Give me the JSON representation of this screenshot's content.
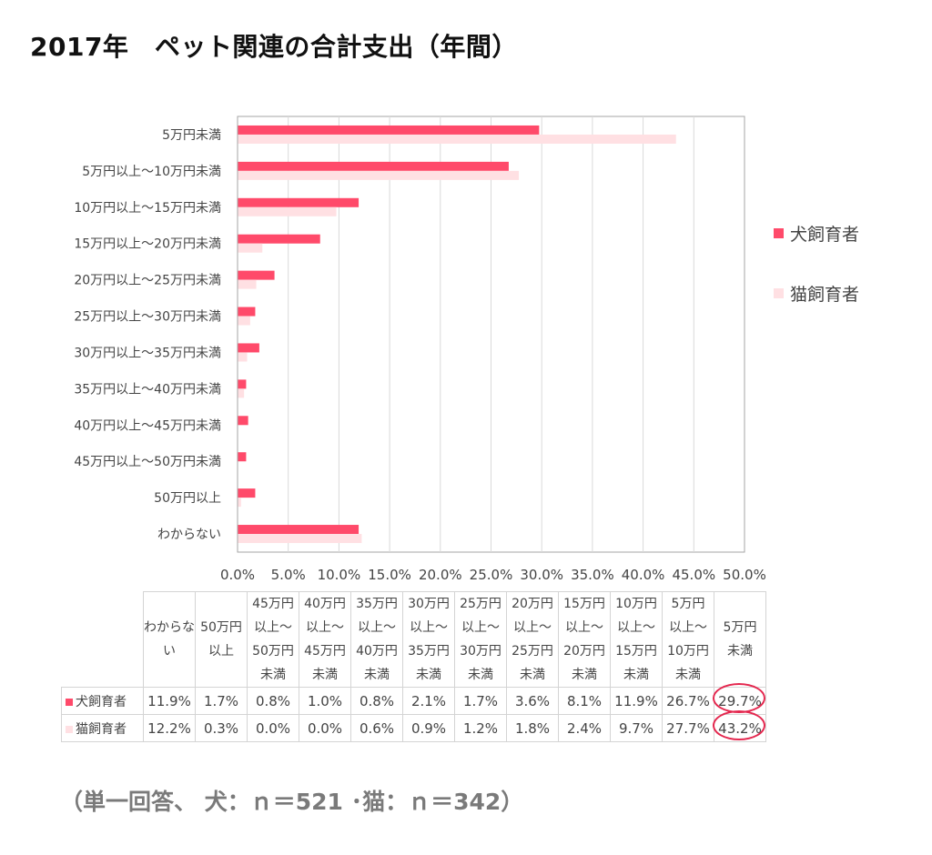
{
  "title": "2017年　ペット関連の合計支出（年間）",
  "chart_data": {
    "type": "bar",
    "orientation": "horizontal",
    "categories": [
      "5万円未満",
      "5万円以上～10万円未満",
      "10万円以上～15万円未満",
      "15万円以上～20万円未満",
      "20万円以上～25万円未満",
      "25万円以上～30万円未満",
      "30万円以上～35万円未満",
      "35万円以上～40万円未満",
      "40万円以上～45万円未満",
      "45万円以上～50万円未満",
      "50万円以上",
      "わからない"
    ],
    "series": [
      {
        "name": "犬飼育者",
        "color": "#ff4a6a",
        "values": [
          29.7,
          26.7,
          11.9,
          8.1,
          3.6,
          1.7,
          2.1,
          0.8,
          1.0,
          0.8,
          1.7,
          11.9
        ]
      },
      {
        "name": "猫飼育者",
        "color": "#ffe0e3",
        "values": [
          43.2,
          27.7,
          9.7,
          2.4,
          1.8,
          1.2,
          0.9,
          0.6,
          0.0,
          0.0,
          0.3,
          12.2
        ]
      }
    ],
    "xlim": [
      0,
      50
    ],
    "xticks": [
      "0.0%",
      "5.0%",
      "10.0%",
      "15.0%",
      "20.0%",
      "25.0%",
      "30.0%",
      "35.0%",
      "40.0%",
      "45.0%",
      "50.0%"
    ],
    "grid": true,
    "legend_position": "right"
  },
  "table": {
    "headers": [
      [
        "わからな",
        "い"
      ],
      [
        "50万円",
        "以上"
      ],
      [
        "45万円",
        "以上～",
        "50万円",
        "未満"
      ],
      [
        "40万円",
        "以上～",
        "45万円",
        "未満"
      ],
      [
        "35万円",
        "以上～",
        "40万円",
        "未満"
      ],
      [
        "30万円",
        "以上～",
        "35万円",
        "未満"
      ],
      [
        "25万円",
        "以上～",
        "30万円",
        "未満"
      ],
      [
        "20万円",
        "以上～",
        "25万円",
        "未満"
      ],
      [
        "15万円",
        "以上～",
        "20万円",
        "未満"
      ],
      [
        "10万円",
        "以上～",
        "15万円",
        "未満"
      ],
      [
        "5万円",
        "以上～",
        "10万円",
        "未満"
      ],
      [
        "5万円",
        "未満"
      ]
    ],
    "rows": [
      {
        "label": "犬飼育者",
        "color": "#ff4a6a",
        "values": [
          "11.9%",
          "1.7%",
          "0.8%",
          "1.0%",
          "0.8%",
          "2.1%",
          "1.7%",
          "3.6%",
          "8.1%",
          "11.9%",
          "26.7%",
          "29.7%"
        ]
      },
      {
        "label": "猫飼育者",
        "color": "#ffe0e3",
        "values": [
          "12.2%",
          "0.3%",
          "0.0%",
          "0.0%",
          "0.6%",
          "0.9%",
          "1.2%",
          "1.8%",
          "2.4%",
          "9.7%",
          "27.7%",
          "43.2%"
        ]
      }
    ]
  },
  "note": "（単一回答、 犬：ｎ＝521 ･猫：ｎ＝342）"
}
